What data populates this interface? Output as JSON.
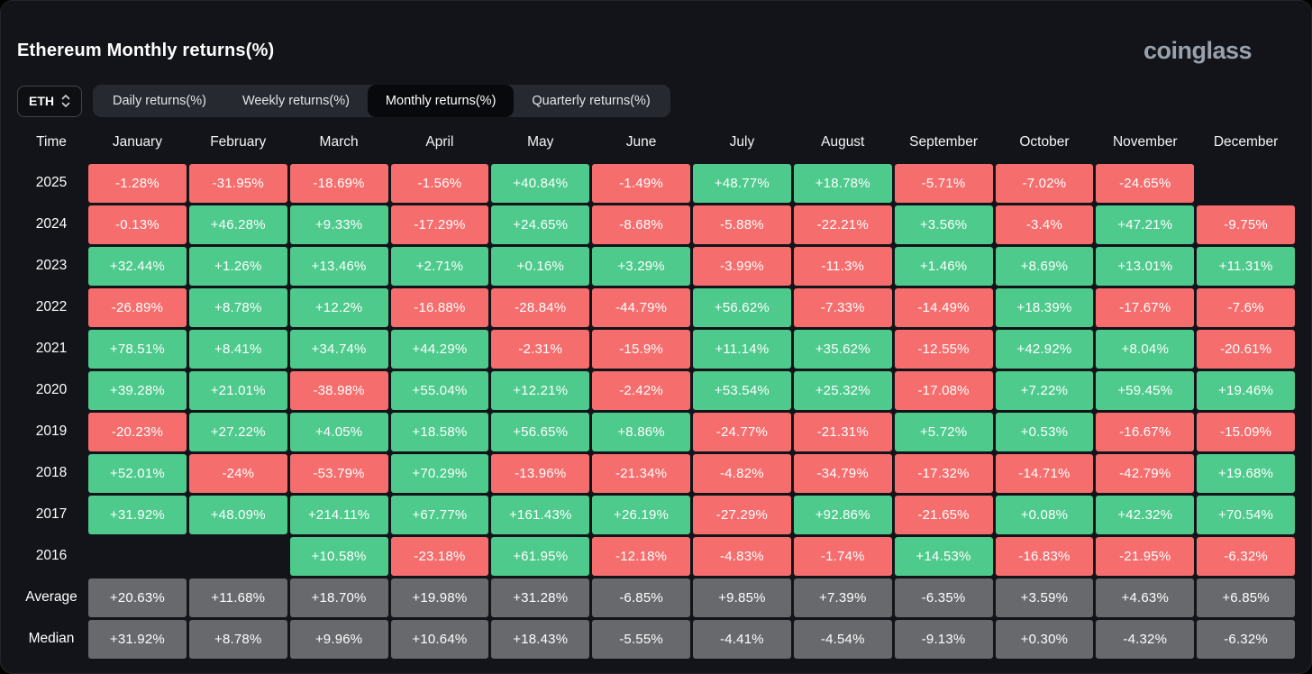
{
  "header": {
    "title": "Ethereum Monthly returns(%)",
    "logo": "coinglass"
  },
  "controls": {
    "symbol": "ETH",
    "symbol_selector_icon": "chevron-up-down-icon",
    "tabs": [
      {
        "label": "Daily returns(%)",
        "active": false
      },
      {
        "label": "Weekly returns(%)",
        "active": false
      },
      {
        "label": "Monthly returns(%)",
        "active": true
      },
      {
        "label": "Quarterly returns(%)",
        "active": false
      }
    ]
  },
  "colors": {
    "positive": "#4dca8c",
    "negative": "#f66d6d",
    "summary": "#68696d",
    "background": "#121419"
  },
  "table": {
    "time_header": "Time",
    "months": [
      "January",
      "February",
      "March",
      "April",
      "May",
      "June",
      "July",
      "August",
      "September",
      "October",
      "November",
      "December"
    ],
    "rows": [
      {
        "label": "2025",
        "kind": "year",
        "cells": [
          "-1.28%",
          "-31.95%",
          "-18.69%",
          "-1.56%",
          "+40.84%",
          "-1.49%",
          "+48.77%",
          "+18.78%",
          "-5.71%",
          "-7.02%",
          "-24.65%",
          null
        ]
      },
      {
        "label": "2024",
        "kind": "year",
        "cells": [
          "-0.13%",
          "+46.28%",
          "+9.33%",
          "-17.29%",
          "+24.65%",
          "-8.68%",
          "-5.88%",
          "-22.21%",
          "+3.56%",
          "-3.4%",
          "+47.21%",
          "-9.75%"
        ]
      },
      {
        "label": "2023",
        "kind": "year",
        "cells": [
          "+32.44%",
          "+1.26%",
          "+13.46%",
          "+2.71%",
          "+0.16%",
          "+3.29%",
          "-3.99%",
          "-11.3%",
          "+1.46%",
          "+8.69%",
          "+13.01%",
          "+11.31%"
        ]
      },
      {
        "label": "2022",
        "kind": "year",
        "cells": [
          "-26.89%",
          "+8.78%",
          "+12.2%",
          "-16.88%",
          "-28.84%",
          "-44.79%",
          "+56.62%",
          "-7.33%",
          "-14.49%",
          "+18.39%",
          "-17.67%",
          "-7.6%"
        ]
      },
      {
        "label": "2021",
        "kind": "year",
        "cells": [
          "+78.51%",
          "+8.41%",
          "+34.74%",
          "+44.29%",
          "-2.31%",
          "-15.9%",
          "+11.14%",
          "+35.62%",
          "-12.55%",
          "+42.92%",
          "+8.04%",
          "-20.61%"
        ]
      },
      {
        "label": "2020",
        "kind": "year",
        "cells": [
          "+39.28%",
          "+21.01%",
          "-38.98%",
          "+55.04%",
          "+12.21%",
          "-2.42%",
          "+53.54%",
          "+25.32%",
          "-17.08%",
          "+7.22%",
          "+59.45%",
          "+19.46%"
        ]
      },
      {
        "label": "2019",
        "kind": "year",
        "cells": [
          "-20.23%",
          "+27.22%",
          "+4.05%",
          "+18.58%",
          "+56.65%",
          "+8.86%",
          "-24.77%",
          "-21.31%",
          "+5.72%",
          "+0.53%",
          "-16.67%",
          "-15.09%"
        ]
      },
      {
        "label": "2018",
        "kind": "year",
        "cells": [
          "+52.01%",
          "-24%",
          "-53.79%",
          "+70.29%",
          "-13.96%",
          "-21.34%",
          "-4.82%",
          "-34.79%",
          "-17.32%",
          "-14.71%",
          "-42.79%",
          "+19.68%"
        ]
      },
      {
        "label": "2017",
        "kind": "year",
        "cells": [
          "+31.92%",
          "+48.09%",
          "+214.11%",
          "+67.77%",
          "+161.43%",
          "+26.19%",
          "-27.29%",
          "+92.86%",
          "-21.65%",
          "+0.08%",
          "+42.32%",
          "+70.54%"
        ]
      },
      {
        "label": "2016",
        "kind": "year",
        "cells": [
          null,
          null,
          "+10.58%",
          "-23.18%",
          "+61.95%",
          "-12.18%",
          "-4.83%",
          "-1.74%",
          "+14.53%",
          "-16.83%",
          "-21.95%",
          "-6.32%"
        ]
      },
      {
        "label": "Average",
        "kind": "summary",
        "cells": [
          "+20.63%",
          "+11.68%",
          "+18.70%",
          "+19.98%",
          "+31.28%",
          "-6.85%",
          "+9.85%",
          "+7.39%",
          "-6.35%",
          "+3.59%",
          "+4.63%",
          "+6.85%"
        ]
      },
      {
        "label": "Median",
        "kind": "summary",
        "cells": [
          "+31.92%",
          "+8.78%",
          "+9.96%",
          "+10.64%",
          "+18.43%",
          "-5.55%",
          "-4.41%",
          "-4.54%",
          "-9.13%",
          "+0.30%",
          "-4.32%",
          "-6.32%"
        ]
      }
    ]
  }
}
